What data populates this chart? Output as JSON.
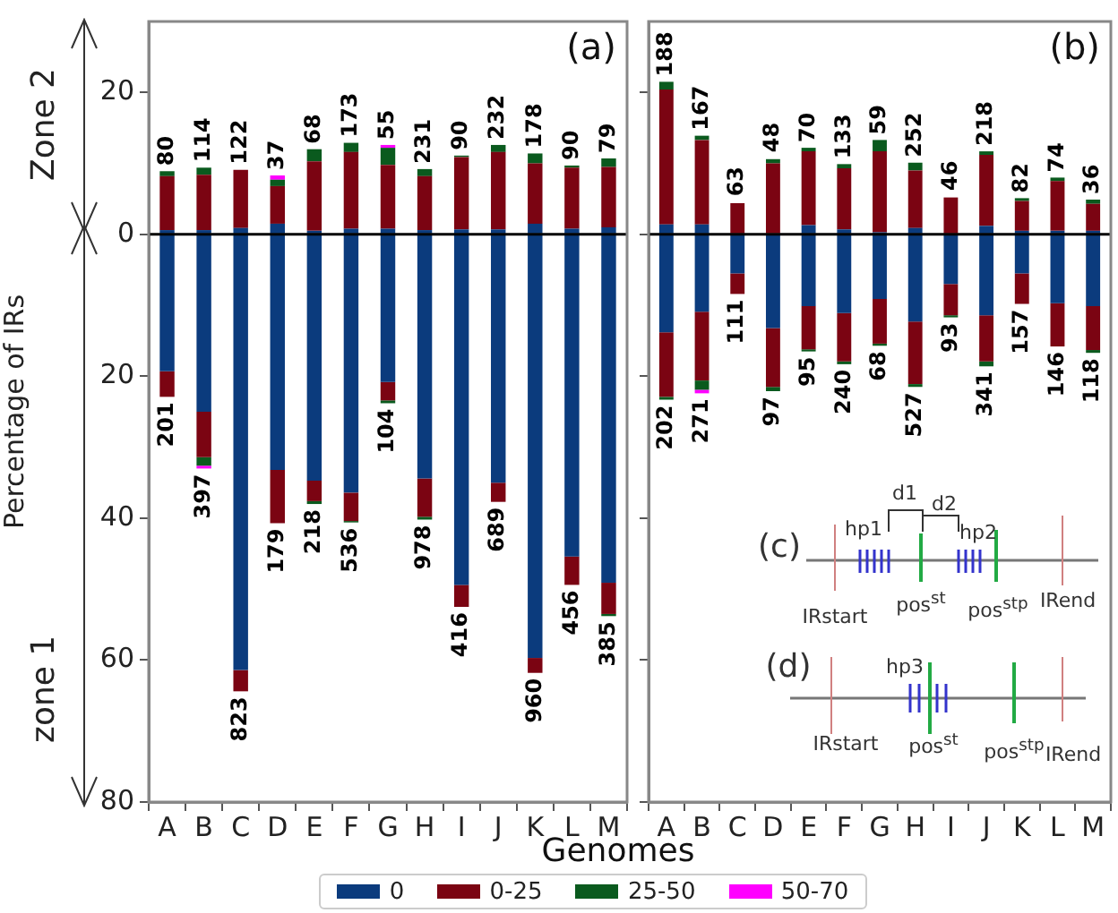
{
  "chart_data": [
    {
      "type": "bar",
      "title": "(a)",
      "ylabel": "Percentage of IRs",
      "xlabel": "Genomes",
      "stacked": true,
      "grid": false,
      "legend": "bottom",
      "categories": [
        "A",
        "B",
        "C",
        "D",
        "E",
        "F",
        "G",
        "H",
        "I",
        "J",
        "K",
        "L",
        "M"
      ],
      "ylim": [
        -80,
        30
      ],
      "yticks": [
        20,
        0,
        {
          "value": -20,
          "label": "20"
        },
        {
          "value": -40,
          "label": "40"
        },
        {
          "value": -60,
          "label": "60"
        },
        {
          "value": -80,
          "label": "80"
        }
      ],
      "ref_lines": [
        {
          "axis": "y",
          "value": 0,
          "color": "#000000"
        }
      ],
      "series": [
        {
          "name": "0",
          "color": "#0b3b7d",
          "values": [
            -19.3,
            -25.0,
            -61.4,
            -33.2,
            -34.7,
            -36.4,
            -20.8,
            -34.4,
            -49.4,
            -35.0,
            -59.7,
            -45.4,
            -49.1
          ]
        },
        {
          "name": "0-25",
          "color": "#7b0412",
          "values": [
            -3.6,
            -6.4,
            -3.0,
            -7.5,
            -2.9,
            -4.0,
            -2.6,
            -5.4,
            -3.1,
            -2.7,
            -2.1,
            -4.0,
            -4.4
          ]
        },
        {
          "name": "25-50",
          "color": "#0a5a1e",
          "values": [
            null,
            -1.2,
            null,
            null,
            -0.4,
            -0.2,
            -0.4,
            -0.4,
            null,
            null,
            null,
            null,
            -0.3
          ]
        },
        {
          "name": "50-70",
          "color": "#ff00ff",
          "values": [
            null,
            -0.4,
            null,
            null,
            null,
            null,
            null,
            null,
            null,
            null,
            null,
            null,
            null
          ]
        },
        {
          "color": "#0b3b7d",
          "values": [
            0.6,
            0.6,
            0.9,
            1.5,
            0.5,
            0.8,
            0.8,
            0.6,
            0.7,
            0.7,
            1.5,
            0.8,
            1.0
          ]
        },
        {
          "color": "#7b0412",
          "values": [
            7.6,
            7.8,
            8.2,
            5.3,
            9.8,
            10.8,
            9.0,
            7.6,
            10.2,
            10.9,
            8.5,
            8.6,
            8.5
          ]
        },
        {
          "color": "#0a5a1e",
          "values": [
            0.7,
            1.0,
            null,
            0.9,
            1.7,
            1.3,
            2.4,
            1.0,
            0.2,
            1.0,
            1.4,
            0.3,
            1.2
          ]
        },
        {
          "color": "#ff00ff",
          "values": [
            null,
            null,
            null,
            0.6,
            null,
            null,
            0.4,
            null,
            null,
            null,
            null,
            null,
            null
          ]
        }
      ],
      "annotations": [
        "Zone 2",
        "zone 1",
        {
          "text": "80",
          "x": "A",
          "y": 8.9
        },
        {
          "text": "114",
          "x": "B",
          "y": 9.4
        },
        {
          "text": "122",
          "x": "C",
          "y": 9.1
        },
        {
          "text": "37",
          "x": "D",
          "y": 8.3
        },
        {
          "text": "68",
          "x": "E",
          "y": 12.0
        },
        {
          "text": "173",
          "x": "F",
          "y": 12.9
        },
        {
          "text": "55",
          "x": "G",
          "y": 12.6
        },
        {
          "text": "231",
          "x": "H",
          "y": 9.2
        },
        {
          "text": "90",
          "x": "I",
          "y": 11.1
        },
        {
          "text": "232",
          "x": "J",
          "y": 12.6
        },
        {
          "text": "178",
          "x": "K",
          "y": 11.4
        },
        {
          "text": "90",
          "x": "L",
          "y": 9.7
        },
        {
          "text": "79",
          "x": "M",
          "y": 10.7
        },
        {
          "text": "201",
          "x": "A",
          "y": -22.9
        },
        {
          "text": "397",
          "x": "B",
          "y": -33.0
        },
        {
          "text": "823",
          "x": "C",
          "y": -64.4
        },
        {
          "text": "179",
          "x": "D",
          "y": -40.7
        },
        {
          "text": "218",
          "x": "E",
          "y": -38.0
        },
        {
          "text": "536",
          "x": "F",
          "y": -40.6
        },
        {
          "text": "104",
          "x": "G",
          "y": -23.8
        },
        {
          "text": "978",
          "x": "H",
          "y": -40.2
        },
        {
          "text": "416",
          "x": "I",
          "y": -52.5
        },
        {
          "text": "689",
          "x": "J",
          "y": -37.7
        },
        {
          "text": "960",
          "x": "K",
          "y": -61.8
        },
        {
          "text": "456",
          "x": "L",
          "y": -49.4
        },
        {
          "text": "385",
          "x": "M",
          "y": -53.8
        }
      ]
    },
    {
      "type": "bar",
      "title": "(b)",
      "stacked": true,
      "grid": false,
      "tick_labels": "x",
      "categories": [
        "A",
        "B",
        "C",
        "D",
        "E",
        "F",
        "G",
        "H",
        "I",
        "J",
        "K",
        "L",
        "M"
      ],
      "ylim": [
        -80,
        30
      ],
      "yticks": [
        {
          "value": 20,
          "label": null
        },
        {
          "value": 0,
          "label": null
        },
        {
          "value": -20,
          "label": null
        },
        {
          "value": -40,
          "label": null
        },
        {
          "value": -60,
          "label": null
        },
        {
          "value": -80,
          "label": null
        }
      ],
      "ref_lines": [
        {
          "axis": "y",
          "value": 0,
          "color": "#000000"
        }
      ],
      "series": [
        {
          "color": "#0b3b7d",
          "values": [
            -13.8,
            -10.9,
            -5.5,
            -13.2,
            -10.1,
            -11.1,
            -9.1,
            -12.3,
            -7.0,
            -11.4,
            -5.5,
            -9.7,
            -10.1
          ]
        },
        {
          "color": "#7b0412",
          "values": [
            -9.1,
            -9.7,
            -2.9,
            -8.3,
            -6.1,
            -6.8,
            -6.3,
            -8.8,
            -4.4,
            -6.5,
            -4.3,
            -6.1,
            -6.2
          ]
        },
        {
          "color": "#0a5a1e",
          "values": [
            -0.4,
            -1.3,
            null,
            -0.6,
            -0.3,
            -0.4,
            -0.3,
            -0.4,
            -0.3,
            -0.7,
            null,
            null,
            -0.4
          ]
        },
        {
          "color": "#ff00ff",
          "values": [
            null,
            -0.5,
            null,
            null,
            null,
            null,
            null,
            null,
            null,
            null,
            null,
            null,
            null
          ]
        },
        {
          "color": "#0b3b7d",
          "values": [
            1.4,
            1.4,
            null,
            null,
            1.3,
            0.7,
            0.3,
            0.9,
            null,
            1.2,
            0.5,
            0.5,
            0.5
          ]
        },
        {
          "color": "#7b0412",
          "values": [
            19.0,
            11.9,
            4.4,
            10.0,
            10.4,
            8.6,
            11.4,
            8.1,
            5.2,
            10.0,
            4.2,
            7.0,
            3.8
          ]
        },
        {
          "color": "#0a5a1e",
          "values": [
            1.1,
            0.6,
            null,
            0.6,
            0.5,
            0.6,
            1.6,
            1.1,
            null,
            0.5,
            0.4,
            0.5,
            0.6
          ]
        }
      ],
      "annotations": [
        "(c)",
        "hp1",
        "d1",
        "d2",
        "hp2",
        "IRstart",
        "pos$^{st}$",
        "pos$^{stp}$",
        "IRend",
        "(d)",
        "hp3",
        "IRstart",
        "pos$^{st}$",
        "pos$^{stp}$",
        "IRend",
        {
          "text": "188",
          "x": "A",
          "y": 21.5
        },
        {
          "text": "167",
          "x": "B",
          "y": 13.9
        },
        {
          "text": "63",
          "x": "C",
          "y": 4.6
        },
        {
          "text": "48",
          "x": "D",
          "y": 10.8
        },
        {
          "text": "70",
          "x": "E",
          "y": 12.2
        },
        {
          "text": "133",
          "x": "F",
          "y": 9.9
        },
        {
          "text": "59",
          "x": "G",
          "y": 13.3
        },
        {
          "text": "252",
          "x": "H",
          "y": 10.1
        },
        {
          "text": "46",
          "x": "I",
          "y": 5.4
        },
        {
          "text": "218",
          "x": "J",
          "y": 11.7
        },
        {
          "text": "82",
          "x": "K",
          "y": 5.1
        },
        {
          "text": "74",
          "x": "L",
          "y": 8.0
        },
        {
          "text": "36",
          "x": "M",
          "y": 4.9
        },
        {
          "text": "202",
          "x": "A",
          "y": -23.3
        },
        {
          "text": "271",
          "x": "B",
          "y": -22.4
        },
        {
          "text": "111",
          "x": "C",
          "y": -8.4
        },
        {
          "text": "97",
          "x": "D",
          "y": -22.1
        },
        {
          "text": "95",
          "x": "E",
          "y": -16.5
        },
        {
          "text": "240",
          "x": "F",
          "y": -18.3
        },
        {
          "text": "68",
          "x": "G",
          "y": -15.7
        },
        {
          "text": "527",
          "x": "H",
          "y": -21.5
        },
        {
          "text": "93",
          "x": "I",
          "y": -11.7
        },
        {
          "text": "341",
          "x": "J",
          "y": -18.6
        },
        {
          "text": "157",
          "x": "K",
          "y": -9.8
        },
        {
          "text": "146",
          "x": "L",
          "y": -15.8
        },
        {
          "text": "118",
          "x": "M",
          "y": -16.7
        }
      ]
    }
  ]
}
